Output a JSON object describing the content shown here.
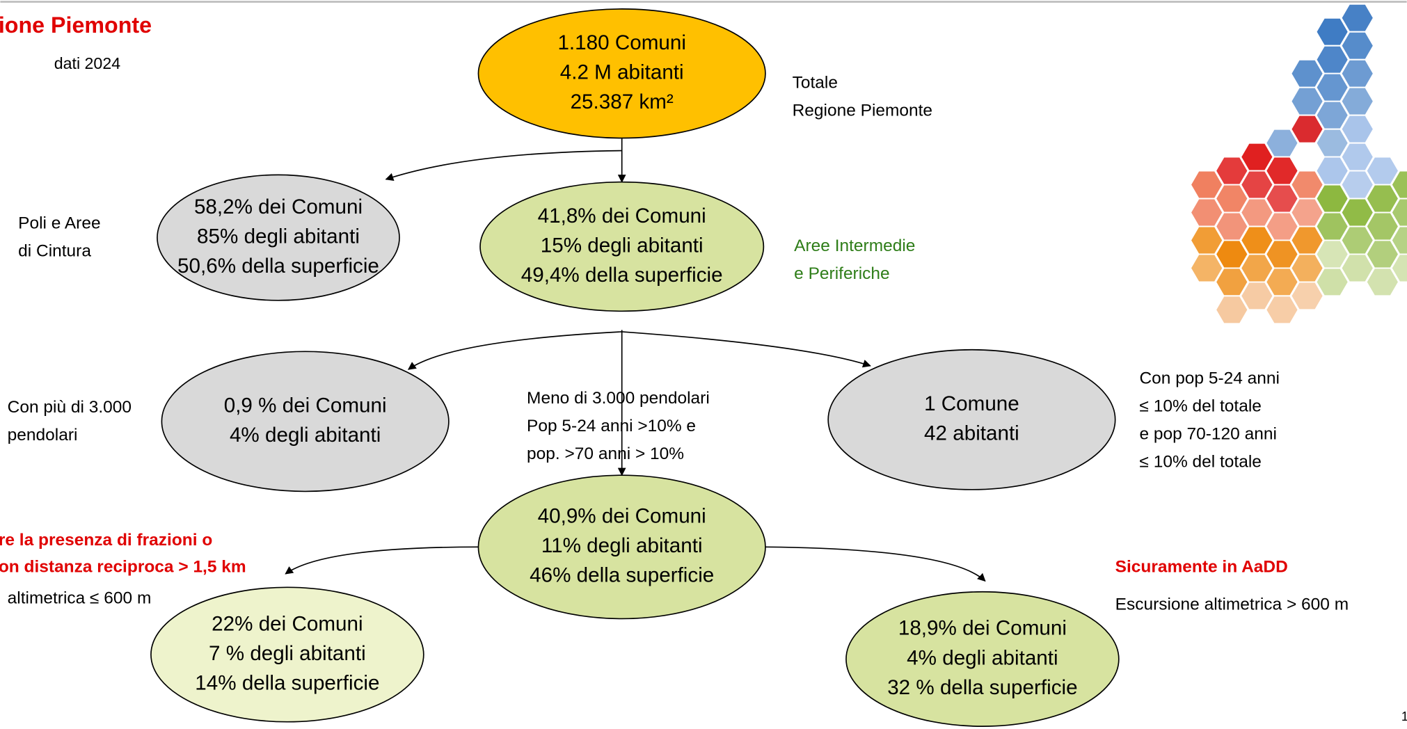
{
  "title": "ione Piemonte",
  "subtitle": "dati 2024",
  "page_number": "1",
  "nodes": [
    {
      "lines": [
        "1.180 Comuni",
        "4.2 M abitanti",
        "25.387 km²"
      ]
    },
    {
      "lines": [
        "58,2% dei Comuni",
        "85% degli abitanti",
        "50,6% della superficie"
      ]
    },
    {
      "lines": [
        "41,8% dei Comuni",
        "15% degli abitanti",
        "49,4% della superficie"
      ]
    },
    {
      "lines": [
        "0,9 % dei Comuni",
        "4% degli abitanti"
      ]
    },
    {
      "lines": [
        "1 Comune",
        "42 abitanti"
      ]
    },
    {
      "lines": [
        "40,9% dei Comuni",
        "11% degli abitanti",
        "46% della superficie"
      ]
    },
    {
      "lines": [
        "22% dei Comuni",
        "7 % degli abitanti",
        "14% della superficie"
      ]
    },
    {
      "lines": [
        "18,9% dei Comuni",
        "4% degli abitanti",
        "32 % della superficie"
      ]
    }
  ],
  "labels": [
    {
      "lines": [
        "Totale",
        "Regione Piemonte"
      ]
    },
    {
      "lines": [
        "Poli e Aree",
        "di Cintura"
      ]
    },
    {
      "lines": [
        "Aree Intermedie",
        "e Periferiche"
      ]
    },
    {
      "lines": [
        "Con più di 3.000",
        "pendolari"
      ]
    },
    {
      "lines": [
        "Meno di 3.000 pendolari",
        "Pop 5-24 anni >10% e",
        "pop. >70 anni > 10%"
      ]
    },
    {
      "lines": [
        "Con pop 5-24 anni",
        "≤ 10% del totale",
        "e pop 70-120 anni",
        "≤ 10% del totale"
      ]
    },
    {
      "lines": [
        "re la presenza di frazioni o",
        "on distanza reciproca > 1,5 km"
      ]
    },
    {
      "lines": [
        "altimetrica ≤ 600 m"
      ]
    },
    {
      "lines": [
        "Sicuramente in AaDD"
      ]
    },
    {
      "lines": [
        "Escursione altimetrica > 600 m"
      ]
    }
  ]
}
